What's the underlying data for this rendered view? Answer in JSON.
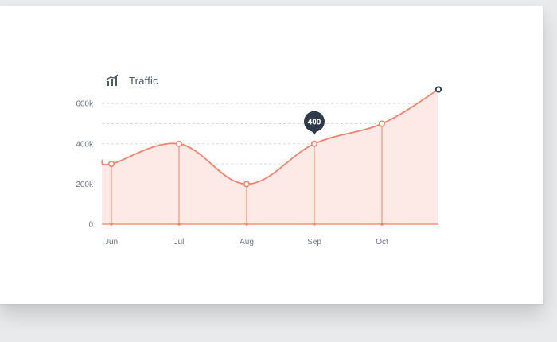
{
  "header": {
    "title": "Traffic",
    "icon": "bar-chart-icon"
  },
  "tooltip": {
    "label": "400"
  },
  "colors": {
    "line": "#f2826c",
    "fill": "#fdeae6",
    "tooltip": "#2f3b4a",
    "grid": "#d9dce0",
    "text": "#6e7785",
    "end_marker": "#2f3b4a"
  },
  "chart_data": {
    "type": "area",
    "categories": [
      "Jun",
      "Jul",
      "Aug",
      "Sep",
      "Oct"
    ],
    "series": [
      {
        "values": [
          300000,
          400000,
          200000,
          400000,
          500000
        ],
        "lead_in_value": 320000,
        "end_value": 670000
      }
    ],
    "yticks": [
      {
        "value": 0,
        "label": "0"
      },
      {
        "value": 200000,
        "label": "200k"
      },
      {
        "value": 400000,
        "label": "400k"
      },
      {
        "value": 600000,
        "label": "600k"
      }
    ],
    "ylim": [
      0,
      700000
    ],
    "grid": true,
    "highlight_category": "Sep"
  }
}
